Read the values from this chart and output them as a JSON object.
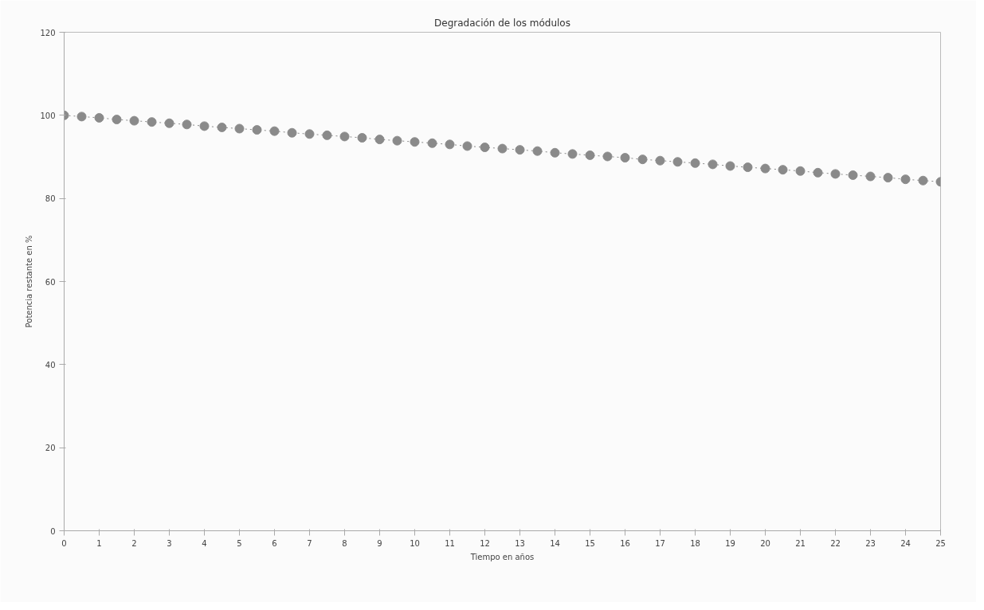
{
  "chart_data": {
    "type": "line",
    "title": "Degradación de los módulos",
    "xlabel": "Tiempo en años",
    "ylabel": "Potencia restante en %",
    "x": [
      0,
      0.5,
      1,
      1.5,
      2,
      2.5,
      3,
      3.5,
      4,
      4.5,
      5,
      5.5,
      6,
      6.5,
      7,
      7.5,
      8,
      8.5,
      9,
      9.5,
      10,
      10.5,
      11,
      11.5,
      12,
      12.5,
      13,
      13.5,
      14,
      14.5,
      15,
      15.5,
      16,
      16.5,
      17,
      17.5,
      18,
      18.5,
      19,
      19.5,
      20,
      20.5,
      21,
      21.5,
      22,
      22.5,
      23,
      23.5,
      24,
      24.5,
      25
    ],
    "series": [
      {
        "color": "#8a8a8a",
        "values": [
          100,
          99.7,
          99.4,
          99.0,
          98.7,
          98.4,
          98.1,
          97.8,
          97.4,
          97.1,
          96.8,
          96.5,
          96.2,
          95.8,
          95.5,
          95.2,
          94.9,
          94.6,
          94.2,
          93.9,
          93.6,
          93.3,
          93.0,
          92.6,
          92.3,
          92.0,
          91.7,
          91.4,
          91.0,
          90.7,
          90.4,
          90.1,
          89.8,
          89.4,
          89.1,
          88.8,
          88.5,
          88.2,
          87.8,
          87.5,
          87.2,
          86.9,
          86.6,
          86.2,
          85.9,
          85.6,
          85.3,
          85.0,
          84.6,
          84.3,
          84.0
        ]
      }
    ],
    "xlim": [
      0,
      25
    ],
    "xticks": [
      0,
      1,
      2,
      3,
      4,
      5,
      6,
      7,
      8,
      9,
      10,
      11,
      12,
      13,
      14,
      15,
      16,
      17,
      18,
      19,
      20,
      21,
      22,
      23,
      24,
      25
    ],
    "ylim": [
      0,
      120
    ],
    "yticks": [
      0,
      20,
      40,
      60,
      80,
      100,
      120
    ],
    "grid": false,
    "marker": "circle",
    "line_style": "dotted"
  }
}
